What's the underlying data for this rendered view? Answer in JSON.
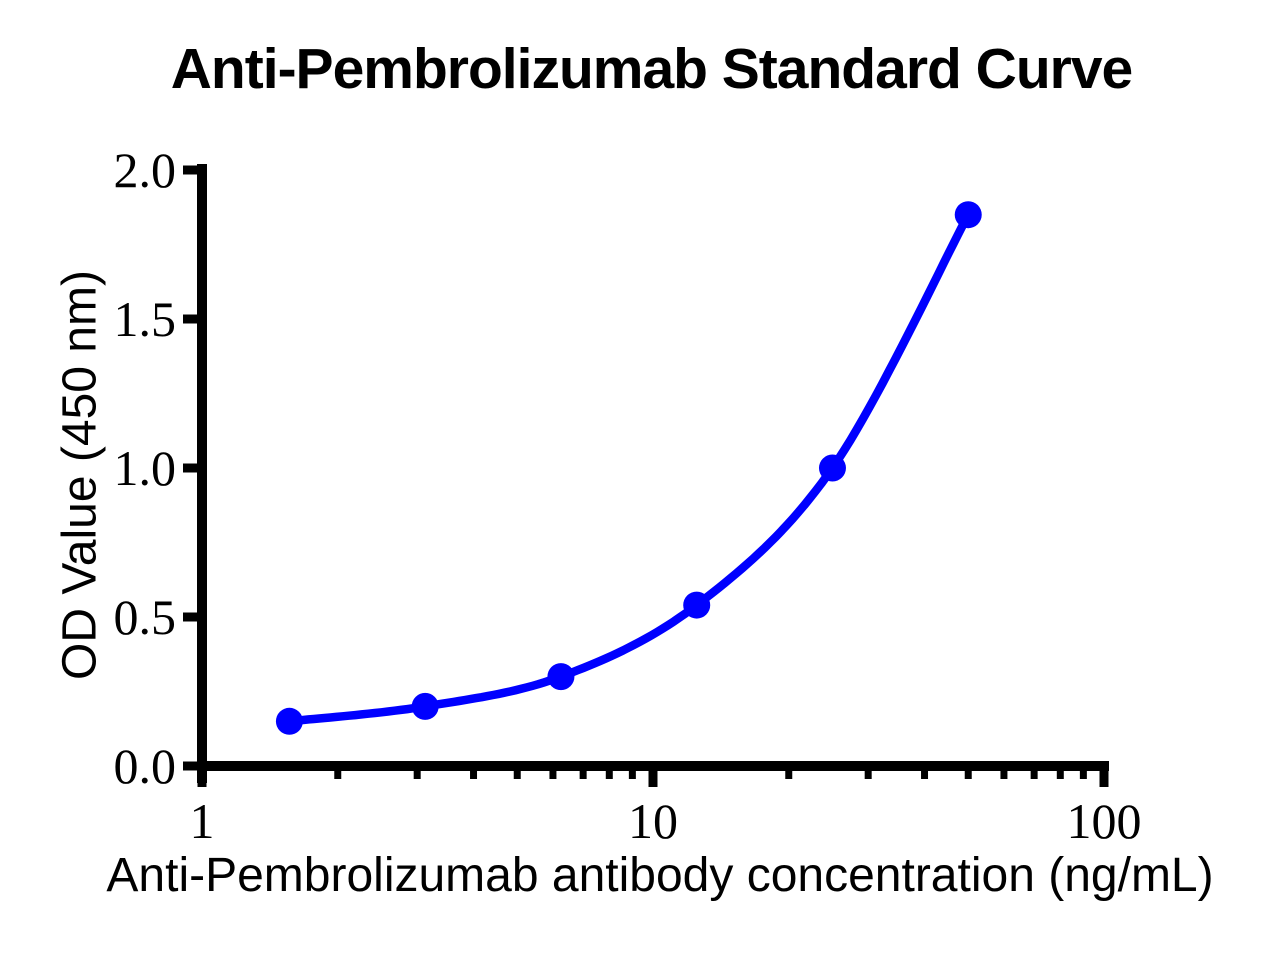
{
  "chart_data": {
    "type": "line",
    "title": "Anti-Pembrolizumab Standard Curve",
    "xlabel": "Anti-Pembrolizumab antibody concentration (ng/mL)",
    "ylabel": "OD Value (450 nm)",
    "x_scale": "log10",
    "xlim": [
      1,
      100
    ],
    "ylim": [
      0.0,
      2.0
    ],
    "x": [
      1.5625,
      3.125,
      6.25,
      12.5,
      25,
      50
    ],
    "y": [
      0.15,
      0.2,
      0.3,
      0.54,
      1.0,
      1.85
    ],
    "y_ticks": {
      "values": [
        0.0,
        0.5,
        1.0,
        1.5,
        2.0
      ],
      "labels": [
        "0.0",
        "0.5",
        "1.0",
        "1.5",
        "2.0"
      ]
    },
    "x_ticks": {
      "major_values": [
        1,
        10,
        100
      ],
      "major_labels": [
        "1",
        "10",
        "100"
      ],
      "minor_values": [
        2,
        3,
        4,
        5,
        6,
        7,
        8,
        9,
        20,
        30,
        40,
        50,
        60,
        70,
        80,
        90
      ]
    },
    "grid": "off",
    "legend": "none",
    "line_color": "#0000FF",
    "marker_color": "#0000FF",
    "marker_shape": "circle",
    "axis_color": "#000000",
    "background_color": "#FFFFFF"
  }
}
